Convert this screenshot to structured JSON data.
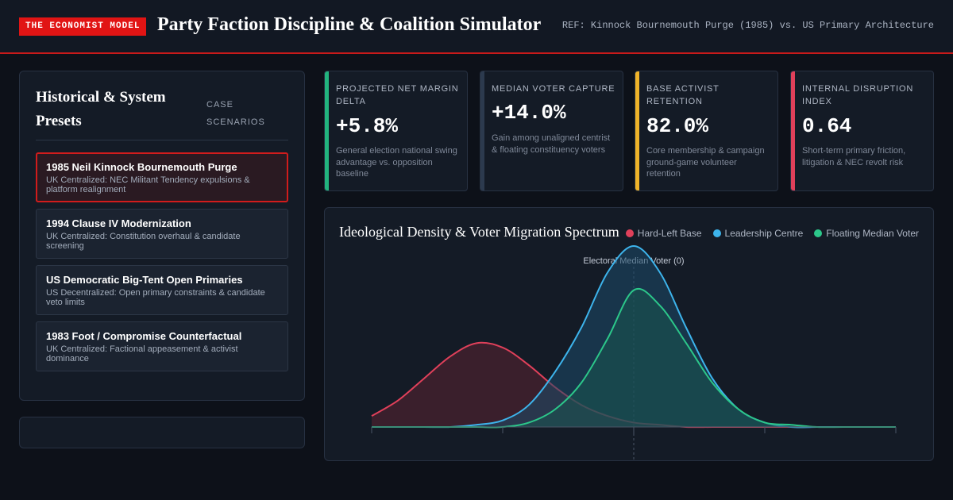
{
  "header": {
    "brand": "THE ECONOMIST MODEL",
    "title": "Party Faction Discipline & Coalition Simulator",
    "ref": "REF: Kinnock Bournemouth Purge (1985) vs. US Primary Architecture"
  },
  "presets": {
    "title": "Historical & System Presets",
    "tag": "CASE SCENARIOS",
    "active_index": 0,
    "items": [
      {
        "title": "1985 Neil Kinnock Bournemouth Purge",
        "desc": "UK Centralized: NEC Militant Tendency expulsions & platform realignment"
      },
      {
        "title": "1994 Clause IV Modernization",
        "desc": "UK Centralized: Constitution overhaul & candidate screening"
      },
      {
        "title": "US Democratic Big-Tent Open Primaries",
        "desc": "US Decentralized: Open primary constraints & candidate veto limits"
      },
      {
        "title": "1983 Foot / Compromise Counterfactual",
        "desc": "UK Centralized: Factional appeasement & activist dominance"
      }
    ]
  },
  "kpis": [
    {
      "label": "PROJECTED NET MARGIN DELTA",
      "value": "+5.8%",
      "desc": "General election national swing advantage vs. opposition baseline",
      "accent": "#22b47e"
    },
    {
      "label": "MEDIAN VOTER CAPTURE",
      "value": "+14.0%",
      "desc": "Gain among unaligned centrist & floating constituency voters",
      "accent": "#2c3a4e"
    },
    {
      "label": "BASE ACTIVIST RETENTION",
      "value": "82.0%",
      "desc": "Core membership & campaign ground-game volunteer retention",
      "accent": "#f0b429"
    },
    {
      "label": "INTERNAL DISRUPTION INDEX",
      "value": "0.64",
      "desc": "Short-term primary friction, litigation & NEC revolt risk",
      "accent": "#e0405a"
    }
  ],
  "chart": {
    "title": "Ideological Density & Voter Migration Spectrum",
    "median_label": "Electoral Median Voter (0)"
  },
  "chart_data": {
    "type": "area",
    "title": "Ideological Density & Voter Migration Spectrum",
    "xlabel": "",
    "ylabel": "",
    "xlim": [
      -10,
      10
    ],
    "annotations": [
      {
        "x": 0,
        "text": "Electoral Median Voter (0)"
      }
    ],
    "x": [
      -10,
      -9,
      -8,
      -7,
      -6,
      -5,
      -4,
      -3,
      -2,
      -1,
      0,
      1,
      2,
      3,
      4,
      5,
      6,
      7,
      8,
      9,
      10
    ],
    "series": [
      {
        "name": "Hard-Left Base",
        "color": "#e0405a",
        "fill": "#5a2232",
        "values": [
          0.05,
          0.12,
          0.22,
          0.32,
          0.38,
          0.36,
          0.28,
          0.18,
          0.1,
          0.05,
          0.02,
          0.01,
          0.0,
          0.0,
          0.0,
          0.0,
          0.0,
          0.0,
          0.0,
          0.0,
          0.0
        ]
      },
      {
        "name": "Leadership Centre",
        "color": "#3db4ec",
        "fill": "#1c4a6a",
        "values": [
          0.0,
          0.0,
          0.0,
          0.0,
          0.01,
          0.03,
          0.1,
          0.25,
          0.45,
          0.7,
          0.82,
          0.7,
          0.45,
          0.22,
          0.08,
          0.02,
          0.0,
          0.0,
          0.0,
          0.0,
          0.0
        ]
      },
      {
        "name": "Floating Median Voter",
        "color": "#2cc78a",
        "fill": "#1a5550",
        "values": [
          0.0,
          0.0,
          0.0,
          0.0,
          0.0,
          0.0,
          0.02,
          0.08,
          0.2,
          0.4,
          0.62,
          0.55,
          0.38,
          0.2,
          0.08,
          0.02,
          0.01,
          0.0,
          0.0,
          0.0,
          0.0
        ]
      }
    ]
  }
}
